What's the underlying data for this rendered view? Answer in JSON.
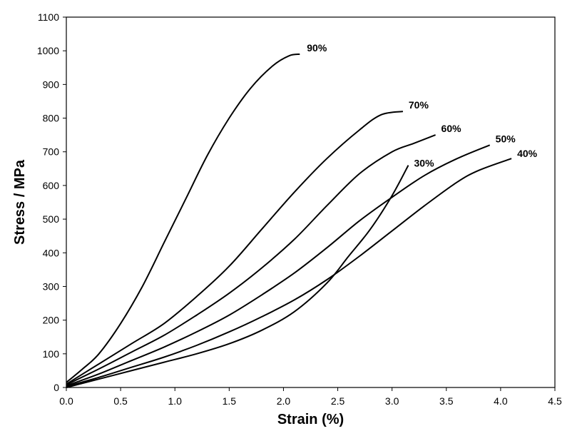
{
  "chart_data": {
    "type": "line",
    "title": "",
    "xlabel": "Strain (%)",
    "ylabel": "Stress / MPa",
    "xlim": [
      0,
      4.5
    ],
    "ylim": [
      0,
      1100
    ],
    "xticks": [
      "0.0",
      "0.5",
      "1.0",
      "1.5",
      "2.0",
      "2.5",
      "3.0",
      "3.5",
      "4.0",
      "4.5"
    ],
    "yticks": [
      "0",
      "100",
      "200",
      "300",
      "400",
      "500",
      "600",
      "700",
      "800",
      "900",
      "1000",
      "1100"
    ],
    "grid": false,
    "legend": "none",
    "series": [
      {
        "name": "90%",
        "x": [
          0,
          0.15,
          0.3,
          0.5,
          0.7,
          0.9,
          1.1,
          1.3,
          1.5,
          1.7,
          1.9,
          2.05,
          2.15
        ],
        "y": [
          15,
          55,
          100,
          190,
          300,
          430,
          560,
          690,
          800,
          890,
          955,
          985,
          990
        ]
      },
      {
        "name": "70%",
        "x": [
          0,
          0.3,
          0.6,
          0.9,
          1.2,
          1.5,
          1.8,
          2.1,
          2.4,
          2.7,
          2.9,
          3.1
        ],
        "y": [
          10,
          70,
          130,
          190,
          270,
          360,
          470,
          580,
          680,
          765,
          810,
          820
        ]
      },
      {
        "name": "60%",
        "x": [
          0,
          0.3,
          0.6,
          0.9,
          1.2,
          1.5,
          1.8,
          2.1,
          2.4,
          2.7,
          3.0,
          3.2,
          3.4
        ],
        "y": [
          8,
          55,
          105,
          155,
          215,
          280,
          355,
          440,
          540,
          635,
          700,
          725,
          750
        ]
      },
      {
        "name": "50%",
        "x": [
          0,
          0.3,
          0.6,
          0.9,
          1.2,
          1.5,
          1.8,
          2.1,
          2.4,
          2.7,
          3.0,
          3.3,
          3.6,
          3.9
        ],
        "y": [
          5,
          40,
          80,
          120,
          165,
          215,
          275,
          340,
          415,
          495,
          565,
          630,
          680,
          720
        ]
      },
      {
        "name": "40%",
        "x": [
          0,
          0.3,
          0.6,
          0.9,
          1.2,
          1.5,
          1.8,
          2.1,
          2.4,
          2.7,
          3.0,
          3.3,
          3.6,
          3.8,
          4.1
        ],
        "y": [
          3,
          30,
          60,
          90,
          125,
          165,
          210,
          260,
          320,
          390,
          465,
          540,
          610,
          645,
          680
        ]
      },
      {
        "name": "30%",
        "x": [
          0,
          0.3,
          0.6,
          0.9,
          1.2,
          1.5,
          1.8,
          2.1,
          2.4,
          2.6,
          2.8,
          3.0,
          3.15
        ],
        "y": [
          0,
          25,
          50,
          75,
          100,
          130,
          170,
          225,
          310,
          390,
          470,
          570,
          660
        ]
      }
    ]
  }
}
